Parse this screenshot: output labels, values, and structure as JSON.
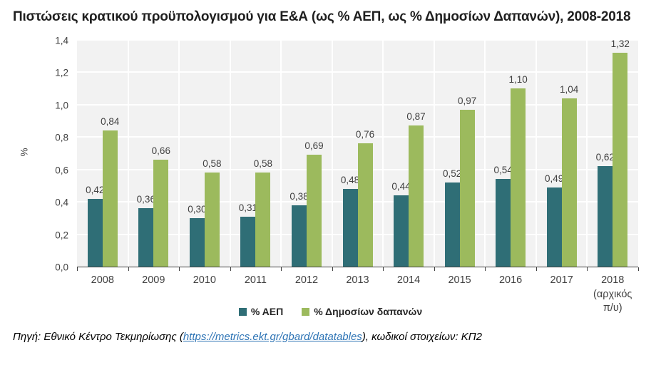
{
  "title": "Πιστώσεις κρατικού προϋπολογισμού για Ε&Α (ως % ΑΕΠ, ως % Δημοσίων Δαπανών), 2008-2018",
  "footer": {
    "prefix": "Πηγή: Εθνικό Κέντρο Τεκμηρίωσης (",
    "link_text": "https://metrics.ekt.gr/gbard/datatables",
    "suffix": "), κωδικοί στοιχείων: ΚΠ2"
  },
  "colors": {
    "gdp": "#2f6e76",
    "public": "#9cba5d",
    "plot_bg": "#f2f2f2",
    "gridline": "#ffffff",
    "axis": "#404040",
    "label": "#404040",
    "link": "#2e74b5"
  },
  "chart_data": {
    "type": "bar",
    "title": "Πιστώσεις κρατικού προϋπολογισμού για Ε&Α (ως % ΑΕΠ, ως % Δημοσίων Δαπανών), 2008-2018",
    "xlabel": "",
    "ylabel": "%",
    "ylim": [
      0,
      1.4
    ],
    "ytick_step": 0.2,
    "ytick_labels": [
      "0,0",
      "0,2",
      "0,4",
      "0,6",
      "0,8",
      "1,0",
      "1,2",
      "1,4"
    ],
    "grid": true,
    "legend_position": "bottom",
    "categories": [
      "2008",
      "2009",
      "2010",
      "2011",
      "2012",
      "2013",
      "2014",
      "2015",
      "2016",
      "2017",
      "2018\n(αρχικός\nπ/υ)"
    ],
    "series": [
      {
        "name": "% ΑΕΠ",
        "color_key": "gdp",
        "values": [
          0.42,
          0.36,
          0.3,
          0.31,
          0.38,
          0.48,
          0.44,
          0.52,
          0.54,
          0.49,
          0.62
        ],
        "labels": [
          "0,42",
          "0,36",
          "0,30",
          "0,31",
          "0,38",
          "0,48",
          "0,44",
          "0,52",
          "0,54",
          "0,49",
          "0,62"
        ]
      },
      {
        "name": "% Δημοσίων δαπανών",
        "color_key": "public",
        "values": [
          0.84,
          0.66,
          0.58,
          0.58,
          0.69,
          0.76,
          0.87,
          0.97,
          1.1,
          1.04,
          1.32
        ],
        "labels": [
          "0,84",
          "0,66",
          "0,58",
          "0,58",
          "0,69",
          "0,76",
          "0,87",
          "0,97",
          "1,10",
          "1,04",
          "1,32"
        ]
      }
    ]
  }
}
